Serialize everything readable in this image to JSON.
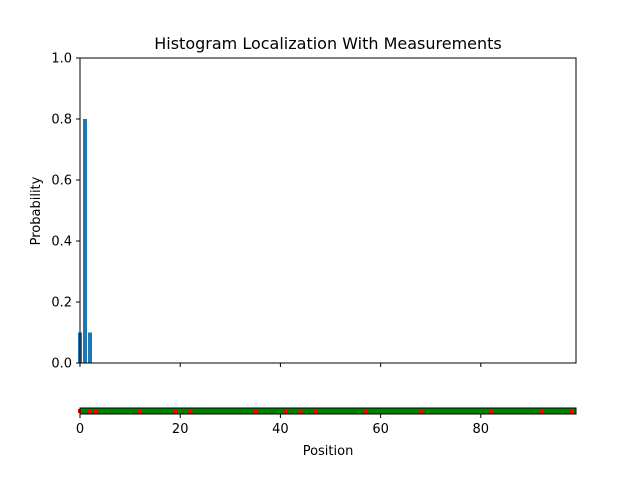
{
  "chart_data": [
    {
      "type": "bar",
      "title": "Histogram Localization With Measurements",
      "xlabel": "",
      "ylabel": "Probability",
      "xlim": [
        0,
        99
      ],
      "ylim": [
        0,
        1.0
      ],
      "xticks": [
        0,
        20,
        40,
        60,
        80
      ],
      "yticks": [
        0.0,
        0.2,
        0.4,
        0.6,
        0.8,
        1.0
      ],
      "ytick_labels": [
        "0.0",
        "0.2",
        "0.4",
        "0.6",
        "0.8",
        "1.0"
      ],
      "bar_color": "#1f77b4",
      "bars": [
        {
          "x": 0,
          "value": 0.1
        },
        {
          "x": 1,
          "value": 0.8
        },
        {
          "x": 2,
          "value": 0.1
        }
      ],
      "grid": false
    },
    {
      "type": "heatmap",
      "title": "",
      "xlabel": "Position",
      "ylabel": "",
      "xlim": [
        0,
        99
      ],
      "xticks": [
        0,
        20,
        40,
        60,
        80
      ],
      "legend": "none",
      "base_color": "#008000",
      "marker_color": "#ff0000",
      "marker_positions": [
        0,
        2,
        3,
        12,
        19,
        22,
        35,
        41,
        44,
        47,
        57,
        68,
        82,
        92,
        98
      ]
    }
  ]
}
